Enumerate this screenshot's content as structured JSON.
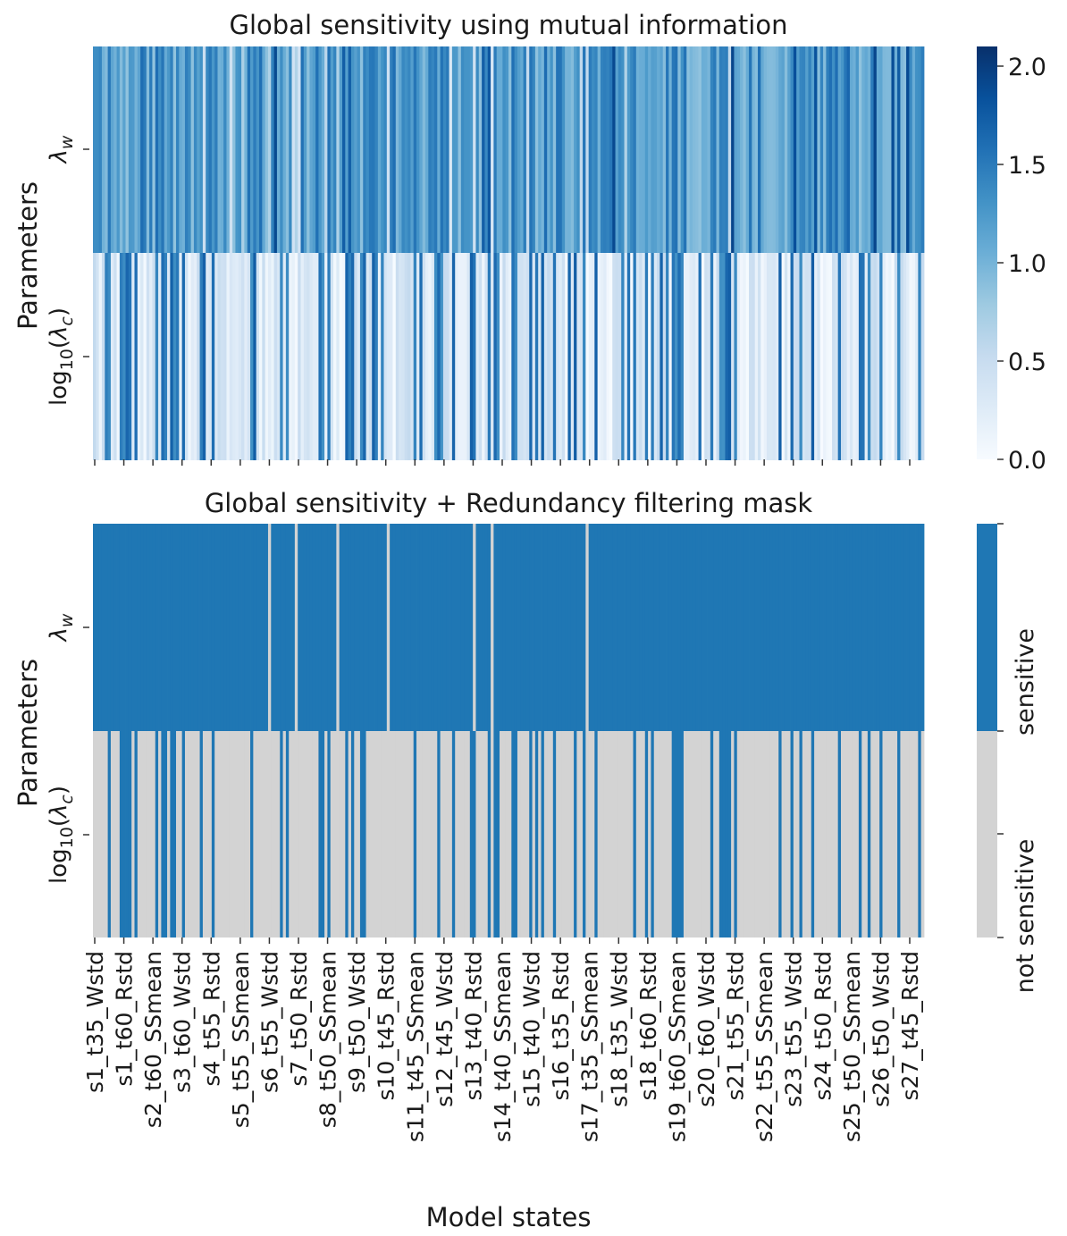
{
  "chart_data": [
    {
      "type": "heatmap",
      "title": "Global sensitivity using mutual information",
      "ylabel": "Parameters",
      "xlabel": "",
      "rows": [
        "λ_w",
        "log_10(λ_c)"
      ],
      "n_columns": 280,
      "colormap": "Blues",
      "colorbar": {
        "range": [
          0.0,
          2.1
        ],
        "ticks": [
          "0.0",
          "0.5",
          "1.0",
          "1.5",
          "2.0"
        ]
      },
      "rows_values_approx": {
        "λ_w": "mostly 0.9-1.6, peaks near 1.9",
        "log_10(λ_c)": "mostly 0.0-0.6 with frequent stripes around 1.5-1.7"
      }
    },
    {
      "type": "heatmap",
      "title": "Global sensitivity + Redundancy filtering mask",
      "ylabel": "Parameters",
      "xlabel": "Model states",
      "rows": [
        "λ_w",
        "log_10(λ_c)"
      ],
      "n_columns": 280,
      "categories": [
        "not sensitive",
        "sensitive"
      ],
      "colors": {
        "sensitive": "#1f77b4",
        "not sensitive": "#d3d3d3"
      },
      "x_tick_labels": [
        "s1_t35_Wstd",
        "s1_t60_Rstd",
        "s2_t60_SSmean",
        "s3_t60_Wstd",
        "s4_t55_Rstd",
        "s5_t55_SSmean",
        "s6_t55_Wstd",
        "s7_t50_Rstd",
        "s8_t50_SSmean",
        "s9_t50_Wstd",
        "s10_t45_Rstd",
        "s11_t45_SSmean",
        "s12_t45_Wstd",
        "s13_t40_Rstd",
        "s14_t40_SSmean",
        "s15_t40_Wstd",
        "s16_t35_Rstd",
        "s17_t35_SSmean",
        "s18_t35_Wstd",
        "s18_t60_Rstd",
        "s19_t60_SSmean",
        "s20_t60_Wstd",
        "s21_t55_Rstd",
        "s22_t55_SSmean",
        "s23_t55_Wstd",
        "s24_t50_Rstd",
        "s25_t50_SSmean",
        "s26_t50_Wstd",
        "s27_t45_Rstd"
      ],
      "colorbar_ticks": [
        "not sensitive",
        "sensitive"
      ]
    }
  ]
}
